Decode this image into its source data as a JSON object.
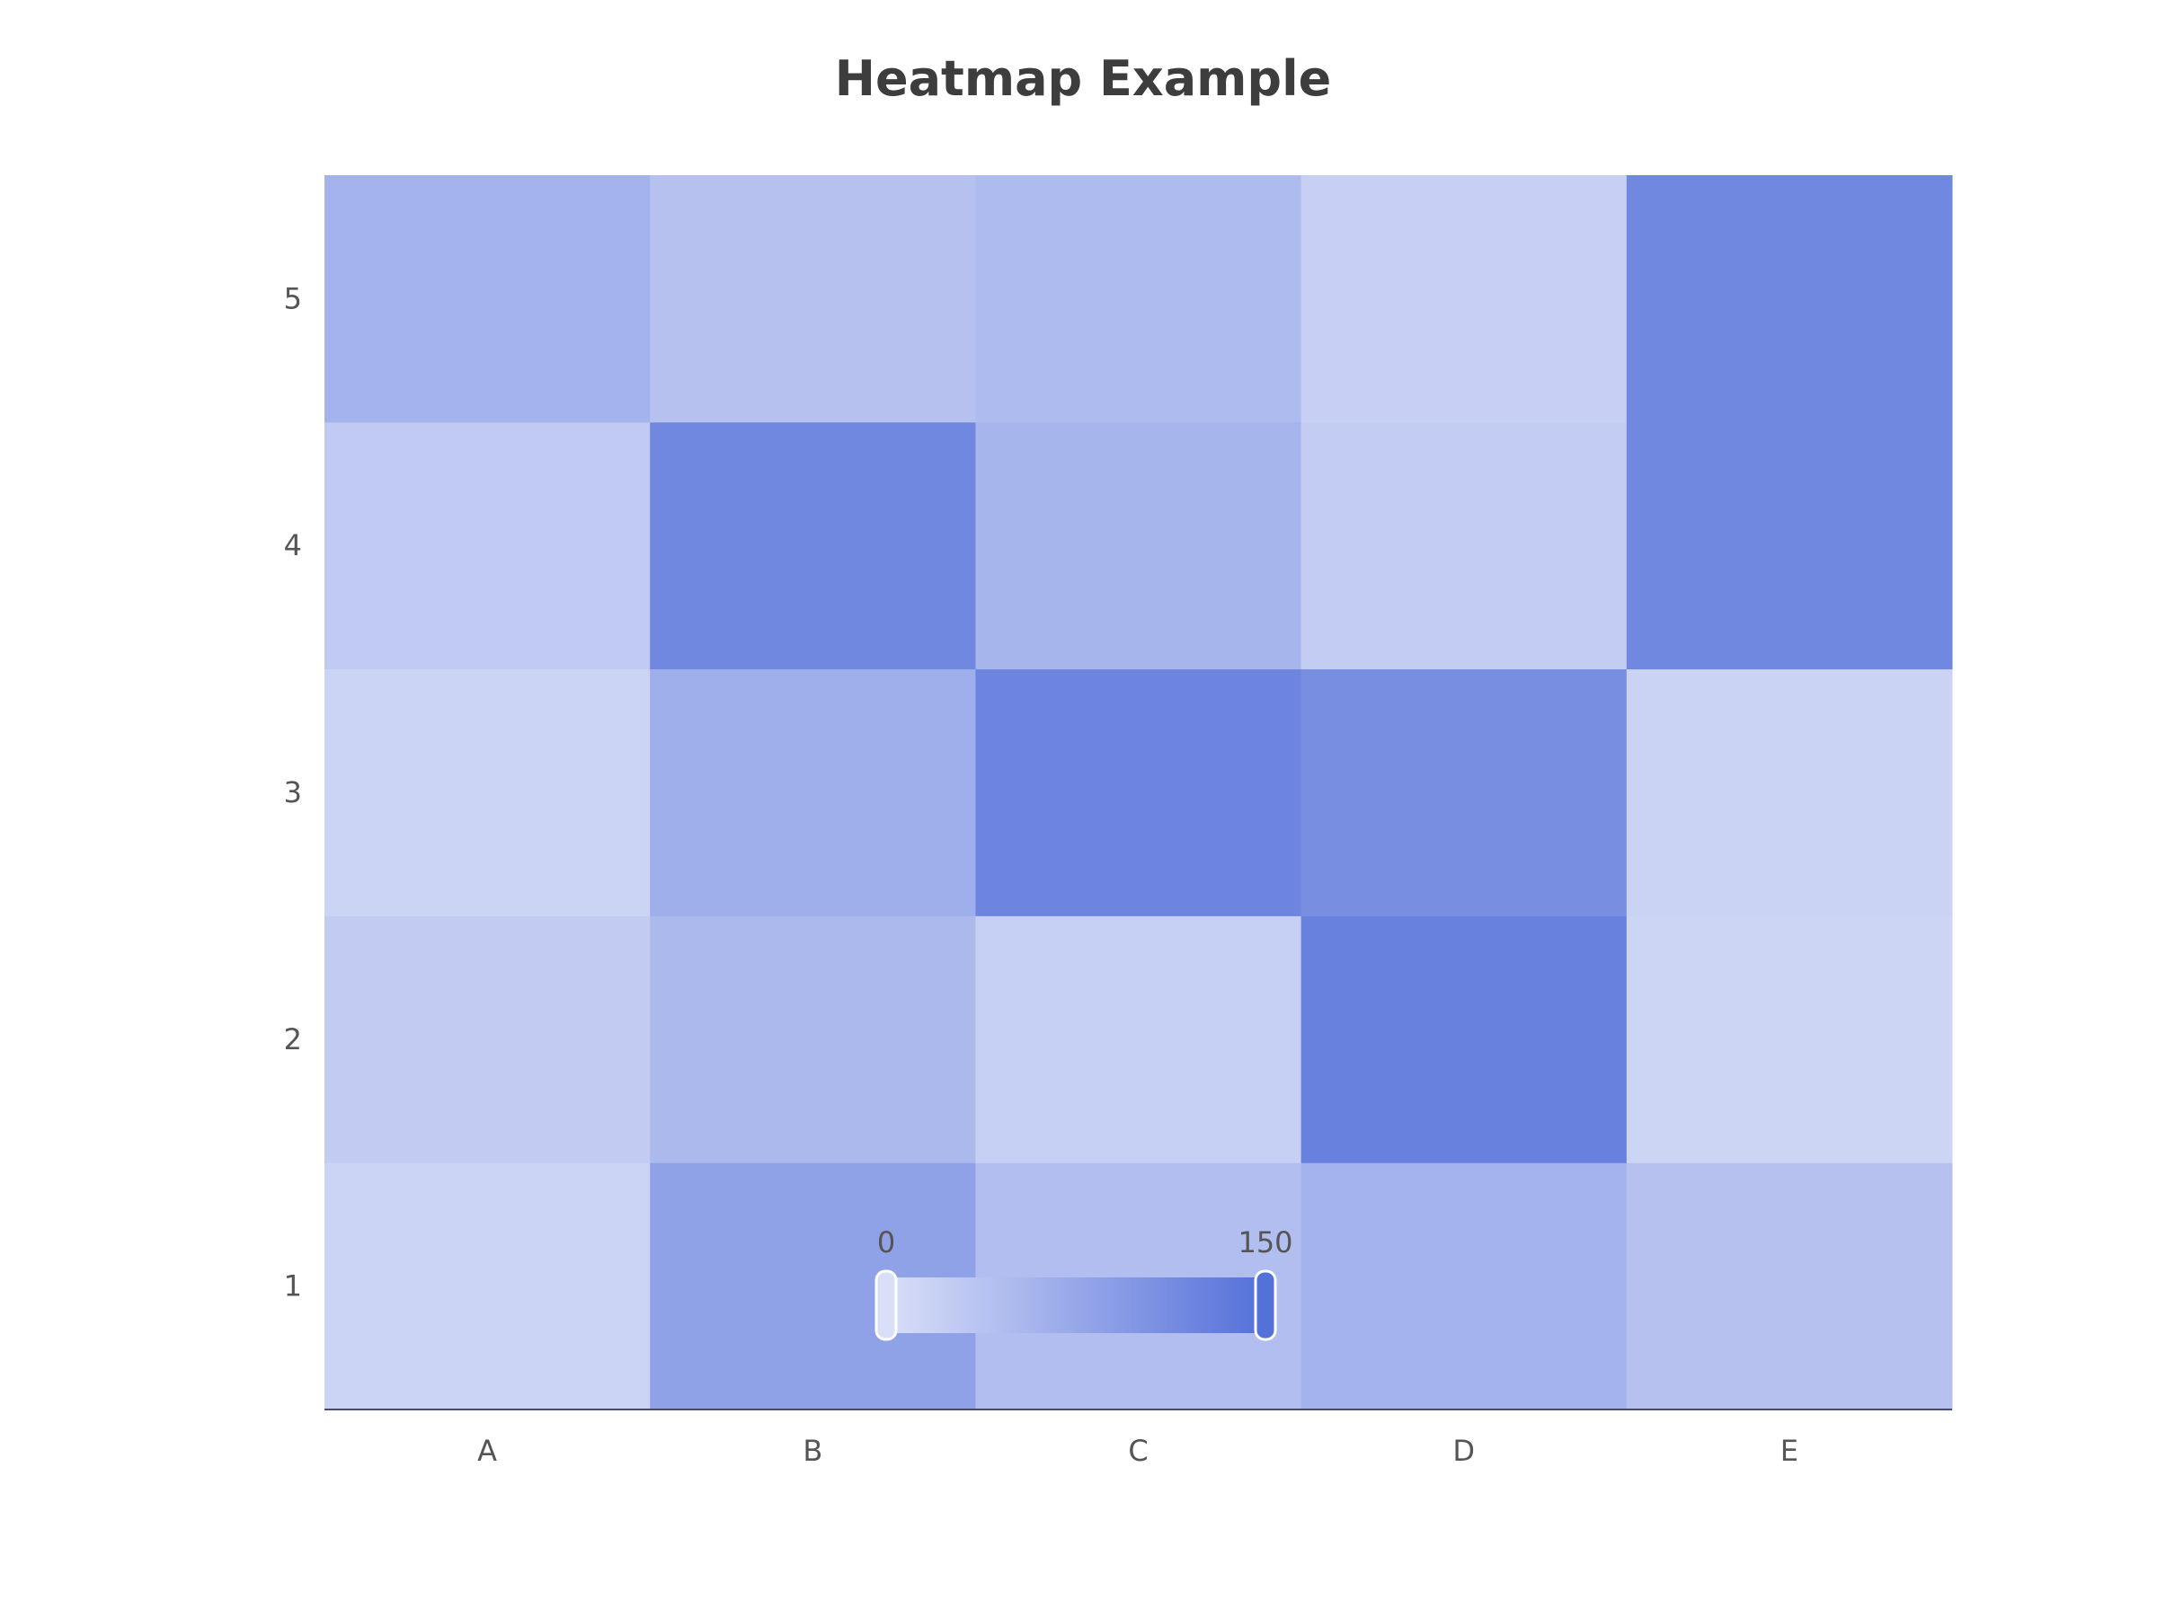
{
  "chart_data": {
    "type": "heatmap",
    "title": "Heatmap Example",
    "x_categories": [
      "A",
      "B",
      "C",
      "D",
      "E"
    ],
    "y_categories": [
      "1",
      "2",
      "3",
      "4",
      "5"
    ],
    "values": [
      [
        15,
        82,
        45,
        60,
        40
      ],
      [
        26,
        52,
        21,
        128,
        14
      ],
      [
        15,
        65,
        122,
        110,
        16
      ],
      [
        28,
        118,
        57,
        25,
        118
      ],
      [
        60,
        40,
        48,
        20,
        118
      ]
    ],
    "visual_map": {
      "min": 0,
      "max": 150,
      "min_label": "0",
      "max_label": "150",
      "color_low": "#d9dff8",
      "color_high": "#5470d9"
    },
    "xlabel": "",
    "ylabel": ""
  }
}
